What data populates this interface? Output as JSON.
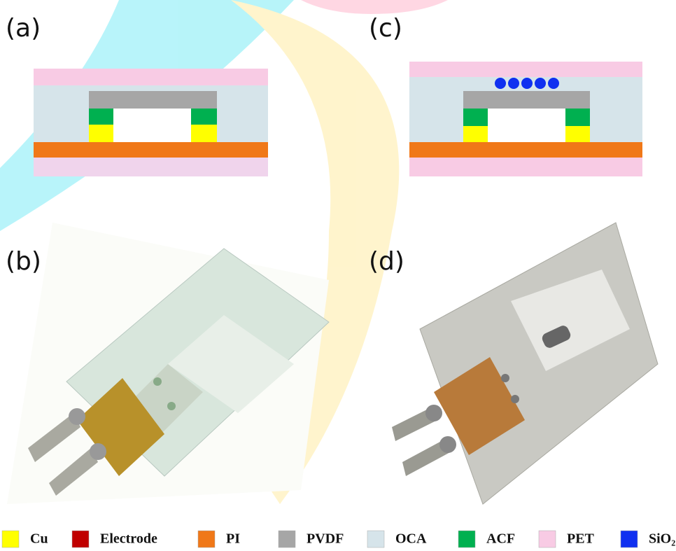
{
  "panels": [
    {
      "label": "(a)"
    },
    {
      "label": "(b)"
    },
    {
      "label": "(c)"
    },
    {
      "label": "(d)"
    }
  ],
  "legend": [
    {
      "label": "Cu",
      "color": "#ffff00"
    },
    {
      "label": "Electrode",
      "color": "#c00000"
    },
    {
      "label": "PI",
      "color": "#f07818"
    },
    {
      "label": "PVDF",
      "color": "#a6a6a6"
    },
    {
      "label": "OCA",
      "color": "#d6e4ea"
    },
    {
      "label": "ACF",
      "color": "#00b050"
    },
    {
      "label": "PET",
      "color": "#f8cbe4"
    },
    {
      "label": "SiO₂",
      "color": "#1030f0"
    }
  ]
}
